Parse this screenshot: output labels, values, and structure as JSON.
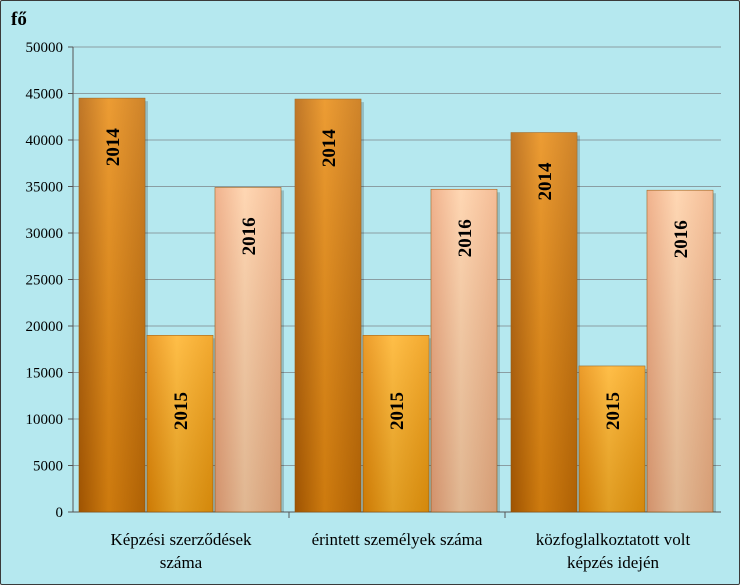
{
  "chart_data": {
    "type": "bar",
    "ylabel": "fő",
    "ylim": [
      0,
      50000
    ],
    "ytick_step": 5000,
    "grid": true,
    "categories": [
      [
        "Képzési szerződések",
        "száma"
      ],
      [
        "érintett személyek száma"
      ],
      [
        "közfoglalkoztatott volt",
        "képzés idején"
      ]
    ],
    "series": [
      {
        "name": "2014",
        "values": [
          44500,
          44400,
          40800
        ]
      },
      {
        "name": "2015",
        "values": [
          19000,
          19000,
          15700
        ]
      },
      {
        "name": "2016",
        "values": [
          34900,
          34700,
          34600
        ]
      }
    ],
    "colors": {
      "s2014": "#d47b08",
      "s2015": "#f39a0f",
      "s2016": "#f3b88b",
      "background": "#b5e8ef"
    }
  }
}
